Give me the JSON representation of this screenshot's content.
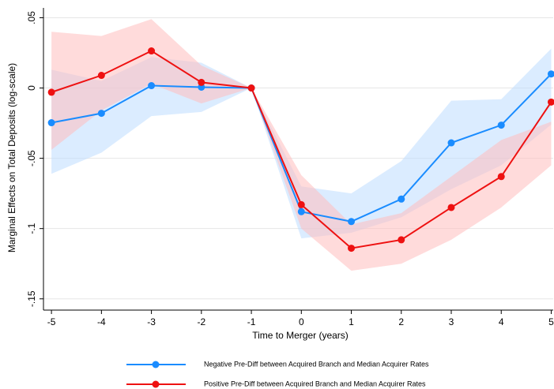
{
  "chart_data": {
    "type": "line",
    "x_label": "Time to Merger (years)",
    "y_label": "Marginal Effects on Total Deposits (log-scale)",
    "x": [
      -5,
      -4,
      -3,
      -2,
      -1,
      0,
      1,
      2,
      3,
      4,
      5
    ],
    "xlim": [
      -5.16,
      5.04
    ],
    "ylim": [
      -0.158,
      0.057
    ],
    "xticks": [
      -5,
      -4,
      -3,
      -2,
      -1,
      0,
      1,
      2,
      3,
      4,
      5
    ],
    "yticks": [
      {
        "value": 0.05,
        "label": ".05"
      },
      0,
      {
        "value": -0.05,
        "label": "-.05"
      },
      {
        "value": -0.1,
        "label": "-.1"
      },
      {
        "value": -0.15,
        "label": "-.15"
      }
    ],
    "grid": true,
    "legend": "bottom",
    "series": [
      {
        "name": "Negative Pre-Diff between Acquired Branch and Median Acquirer Rates",
        "color": "#1a8cff",
        "band_color": "rgba(190,220,255,0.55)",
        "values": [
          -0.0247,
          -0.018,
          0.0017,
          0.0006,
          0,
          -0.088,
          -0.095,
          -0.079,
          -0.039,
          -0.0264,
          0.01
        ],
        "ci_lower": [
          -0.061,
          -0.046,
          -0.02,
          -0.017,
          0,
          -0.107,
          -0.103,
          -0.092,
          -0.072,
          -0.055,
          -0.026
        ],
        "ci_upper": [
          0.013,
          0.005,
          0.022,
          0.018,
          0,
          -0.07,
          -0.075,
          -0.052,
          -0.009,
          -0.008,
          0.028
        ]
      },
      {
        "name": "Positive Pre-Diff between Acquired Branch and Median Acquirer Rates",
        "color": "#ee1111",
        "band_color": "rgba(255,190,190,0.55)",
        "values": [
          -0.003,
          0.009,
          0.0264,
          0.004,
          0,
          -0.083,
          -0.114,
          -0.108,
          -0.085,
          -0.063,
          -0.01
        ],
        "ci_lower": [
          -0.044,
          -0.016,
          0.003,
          -0.011,
          0,
          -0.1,
          -0.13,
          -0.125,
          -0.108,
          -0.085,
          -0.055
        ],
        "ci_upper": [
          0.04,
          0.037,
          0.049,
          0.016,
          0,
          -0.062,
          -0.097,
          -0.089,
          -0.063,
          -0.037,
          -0.024
        ]
      }
    ]
  }
}
